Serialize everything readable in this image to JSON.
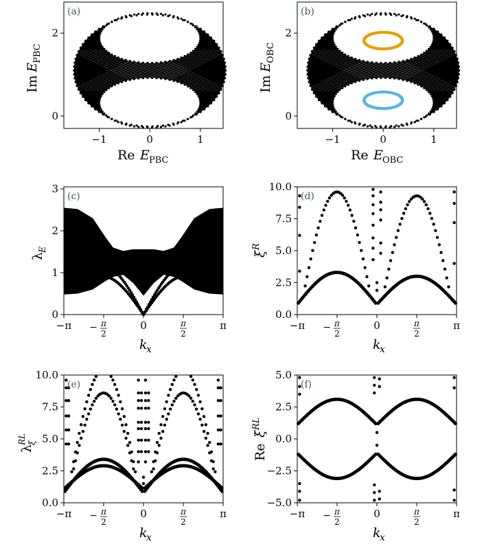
{
  "chart_data": [
    {
      "panel": "a",
      "type": "scatter",
      "label": "(a)",
      "xlabel": "Re E_PBC",
      "ylabel": "Im E_PBC",
      "xlabel_parts": [
        "Re ",
        "E",
        "PBC"
      ],
      "ylabel_parts": [
        "Im ",
        "E",
        "PBC"
      ],
      "xlim": [
        -1.7,
        1.45
      ],
      "ylim": [
        -0.3,
        2.75
      ],
      "xticks": [
        -1,
        0,
        1
      ],
      "xticklabels": [
        "−1",
        "0",
        "1"
      ],
      "yticks": [
        0,
        2
      ],
      "yticklabels": [
        "0",
        "2"
      ],
      "description_of_points": "Filled elliptical region centered at (0,1.1) with semi-axes 1.5 x 1.35; two white elliptical holes centered at (0,1.9) and (0,0.3) each with semi-axes 1.0 x 0.6",
      "outer": {
        "cx": 0,
        "cy": 1.1,
        "rx": 1.5,
        "ry": 1.35
      },
      "holes": [
        {
          "cx": 0,
          "cy": 1.88,
          "rx": 1.0,
          "ry": 0.6
        },
        {
          "cx": 0,
          "cy": 0.32,
          "rx": 1.0,
          "ry": 0.6
        }
      ]
    },
    {
      "panel": "b",
      "type": "scatter",
      "label": "(b)",
      "xlabel": "Re E_OBC",
      "ylabel": "Im E_OBC",
      "xlabel_parts": [
        "Re ",
        "E",
        "OBC"
      ],
      "ylabel_parts": [
        "Im ",
        "E",
        "OBC"
      ],
      "xlim": [
        -1.7,
        1.45
      ],
      "ylim": [
        -0.3,
        2.75
      ],
      "xticks": [
        -1,
        0,
        1
      ],
      "xticklabels": [
        "−1",
        "0",
        "1"
      ],
      "yticks": [
        0,
        2
      ],
      "yticklabels": [
        "0",
        "2"
      ],
      "outer": {
        "cx": 0,
        "cy": 1.1,
        "rx": 1.5,
        "ry": 1.35
      },
      "holes": [
        {
          "cx": 0,
          "cy": 1.88,
          "rx": 1.0,
          "ry": 0.6
        },
        {
          "cx": 0,
          "cy": 0.32,
          "rx": 1.0,
          "ry": 0.6
        }
      ],
      "loops": [
        {
          "name": "upper",
          "color": "#e69f00",
          "cx": 0,
          "cy": 1.82,
          "rx": 0.38,
          "ry": 0.2
        },
        {
          "name": "lower",
          "color": "#56b4e9",
          "cx": 0,
          "cy": 0.38,
          "rx": 0.38,
          "ry": 0.2
        }
      ]
    },
    {
      "panel": "c",
      "type": "area",
      "label": "(c)",
      "xlabel": "k_x",
      "ylabel": "λ_E",
      "xlim": [
        -3.1416,
        3.1416
      ],
      "ylim": [
        0,
        3.05
      ],
      "xticklabels": [
        "−π",
        "−π/2",
        "0",
        "π/2",
        "π"
      ],
      "yticks": [
        0,
        1,
        2,
        3
      ],
      "yticklabels": [
        "0",
        "1",
        "2",
        "3"
      ],
      "band_x": [
        -3.1416,
        -2.6,
        -2.0,
        -1.5,
        -1.2,
        -0.8,
        -0.4,
        0,
        0.4,
        0.8,
        1.2,
        1.5,
        2.0,
        2.6,
        3.1416
      ],
      "band_upper": [
        2.55,
        2.52,
        2.3,
        1.85,
        1.6,
        1.52,
        1.56,
        1.56,
        1.56,
        1.52,
        1.6,
        1.85,
        2.3,
        2.52,
        2.55
      ],
      "band_lower": [
        0.48,
        0.5,
        0.6,
        0.8,
        0.9,
        0.95,
        0.75,
        0.45,
        0.75,
        0.95,
        0.9,
        0.8,
        0.6,
        0.5,
        0.48
      ],
      "curve1_peak": 0.88,
      "curve2_peak": 1.12
    },
    {
      "panel": "d",
      "type": "scatter",
      "label": "(d)",
      "xlabel": "k_x",
      "ylabel": "ξ^R",
      "xlim": [
        -3.1416,
        3.1416
      ],
      "ylim": [
        0,
        10
      ],
      "xticklabels": [
        "−π",
        "−π/2",
        "0",
        "π/2",
        "π"
      ],
      "yticks": [
        0,
        2.5,
        5,
        7.5,
        10
      ],
      "yticklabels": [
        "0.0",
        "2.5",
        "5.0",
        "7.5",
        "10.0"
      ],
      "upper_left": {
        "peak_x": -1.3,
        "peak_y": 9.6,
        "edge_y": 0
      },
      "upper_right": {
        "peak_x": 1.5,
        "peak_y": 9.3,
        "edge_y": 0
      },
      "lower_left": {
        "peak_x": -1.5,
        "peak_y": 3.3,
        "edge_y": 0.9
      },
      "lower_right": {
        "peak_x": 1.5,
        "peak_y": 3.0,
        "edge_y": 0.9
      }
    },
    {
      "panel": "e",
      "type": "scatter",
      "label": "(e)",
      "xlabel": "k_x",
      "ylabel": "λ_ξ^RL",
      "xlim": [
        -3.1416,
        3.1416
      ],
      "ylim": [
        0,
        10
      ],
      "xticklabels": [
        "−π",
        "−π/2",
        "0",
        "π/2",
        "π"
      ],
      "yticks": [
        0,
        2.5,
        5,
        7.5,
        10
      ],
      "yticklabels": [
        "0.0",
        "2.5",
        "5.0",
        "7.5",
        "10.0"
      ],
      "arches_high": [
        10.4,
        8.6
      ],
      "arches_low": [
        3.4,
        2.9
      ]
    },
    {
      "panel": "f",
      "type": "scatter",
      "label": "(f)",
      "xlabel": "k_x",
      "ylabel": "Re ξ^RL",
      "xlim": [
        -3.1416,
        3.1416
      ],
      "ylim": [
        -5,
        5
      ],
      "xticklabels": [
        "−π",
        "−π/2",
        "0",
        "π/2",
        "π"
      ],
      "yticks": [
        -5,
        -2.5,
        0,
        2.5,
        5
      ],
      "yticklabels": [
        "−5.0",
        "−2.5",
        "0.0",
        "2.5",
        "5.0"
      ],
      "arch_peak": 3.1,
      "arch_edge": 1.2
    }
  ]
}
